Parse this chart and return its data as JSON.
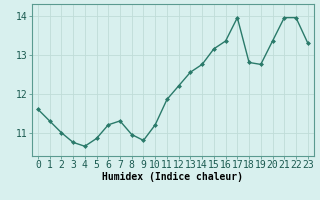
{
  "x": [
    0,
    1,
    2,
    3,
    4,
    5,
    6,
    7,
    8,
    9,
    10,
    11,
    12,
    13,
    14,
    15,
    16,
    17,
    18,
    19,
    20,
    21,
    22,
    23
  ],
  "y": [
    11.6,
    11.3,
    11.0,
    10.75,
    10.65,
    10.85,
    11.2,
    11.3,
    10.95,
    10.8,
    11.2,
    11.85,
    12.2,
    12.55,
    12.75,
    13.15,
    13.35,
    13.95,
    12.8,
    12.75,
    13.35,
    13.95,
    13.95,
    13.3
  ],
  "line_color": "#2a7a6a",
  "marker": "D",
  "marker_size": 2,
  "bg_color": "#d8f0ee",
  "grid_color": "#c0dcd8",
  "xlabel": "Humidex (Indice chaleur)",
  "xlabel_fontsize": 7,
  "tick_fontsize": 7,
  "ylim": [
    10.4,
    14.3
  ],
  "yticks": [
    11,
    12,
    13,
    14
  ],
  "xticks": [
    0,
    1,
    2,
    3,
    4,
    5,
    6,
    7,
    8,
    9,
    10,
    11,
    12,
    13,
    14,
    15,
    16,
    17,
    18,
    19,
    20,
    21,
    22,
    23
  ],
  "linewidth": 1.0
}
